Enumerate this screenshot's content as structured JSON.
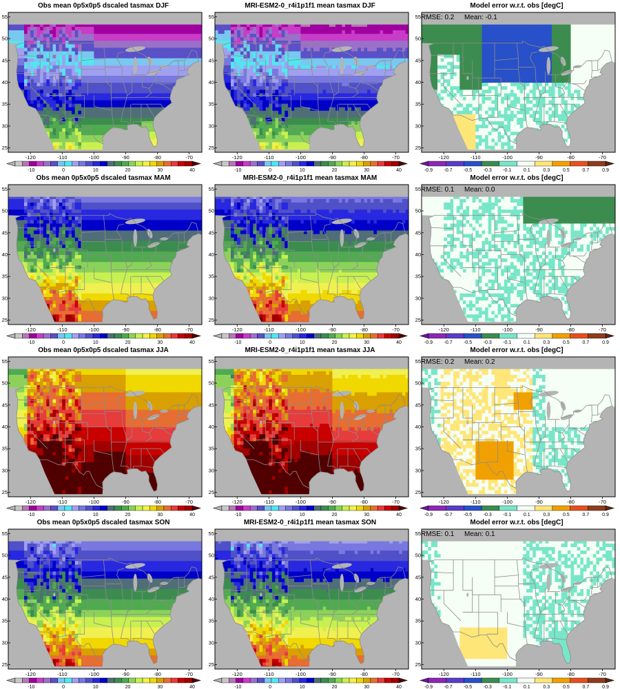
{
  "rows": [
    {
      "season": "DJF",
      "panels": [
        {
          "kind": "obs",
          "title": "Obs mean 0p5x0p5 dscaled tasmax DJF"
        },
        {
          "kind": "model",
          "title": "MRI-ESM2-0_r4i1p1f1 mean tasmax DJF"
        },
        {
          "kind": "error",
          "title": "Model error w.r.t. obs [degC]",
          "rmse_label": "RMSE: 0.2",
          "mean_label": "Mean: -0.1"
        }
      ]
    },
    {
      "season": "MAM",
      "panels": [
        {
          "kind": "obs",
          "title": "Obs mean 0p5x0p5 dscaled tasmax MAM"
        },
        {
          "kind": "model",
          "title": "MRI-ESM2-0_r4i1p1f1 mean tasmax MAM"
        },
        {
          "kind": "error",
          "title": "Model error w.r.t. obs [degC]",
          "rmse_label": "RMSE: 0.1",
          "mean_label": "Mean: 0.0"
        }
      ]
    },
    {
      "season": "JJA",
      "panels": [
        {
          "kind": "obs",
          "title": "Obs mean 0p5x0p5 dscaled tasmax JJA"
        },
        {
          "kind": "model",
          "title": "MRI-ESM2-0_r4i1p1f1 mean tasmax JJA"
        },
        {
          "kind": "error",
          "title": "Model error w.r.t. obs [degC]",
          "rmse_label": "RMSE: 0.2",
          "mean_label": "Mean: 0.2"
        }
      ]
    },
    {
      "season": "SON",
      "panels": [
        {
          "kind": "obs",
          "title": "Obs mean 0p5x0p5 dscaled tasmax SON"
        },
        {
          "kind": "model",
          "title": "MRI-ESM2-0_r4i1p1f1 mean tasmax SON"
        },
        {
          "kind": "error",
          "title": "Model error w.r.t. obs [degC]",
          "rmse_label": "RMSE: 0.1",
          "mean_label": "Mean: 0.1"
        }
      ]
    }
  ],
  "map_axes": {
    "lon_ticks": [
      "-120",
      "-110",
      "-100",
      "-90",
      "-80",
      "-70"
    ],
    "lat_ticks": [
      "25",
      "30",
      "35",
      "40",
      "45",
      "50",
      "55"
    ],
    "lon_range": [
      -127,
      -66
    ],
    "lat_range": [
      24,
      56
    ]
  },
  "colorbars": {
    "temperature": {
      "labels": [
        "-10",
        "0",
        "10",
        "20",
        "30",
        "40"
      ],
      "label_values": [
        -10,
        0,
        10,
        20,
        30,
        40
      ],
      "range": [
        -15,
        40
      ],
      "colors": [
        "#c8c8c8",
        "#b478b4",
        "#a000a0",
        "#c83cc8",
        "#9a70c8",
        "#5a50c8",
        "#78c8f0",
        "#50e8f0",
        "#a0a0f0",
        "#7878e0",
        "#5050c8",
        "#2828e0",
        "#0000c8",
        "#506e78",
        "#3c8c50",
        "#50aa50",
        "#8cd25a",
        "#c8f050",
        "#f0f050",
        "#f0d800",
        "#d8a000",
        "#e66e32",
        "#e63c3c",
        "#c80000",
        "#a00000"
      ],
      "under_color": "#b4b4b4",
      "over_color": "#500000"
    },
    "error": {
      "labels": [
        "-0.9",
        "-0.7",
        "-0.5",
        "-0.3",
        "-0.1",
        "0.1",
        "0.3",
        "0.5",
        "0.7",
        "0.9"
      ],
      "label_values": [
        -0.9,
        -0.7,
        -0.5,
        -0.3,
        -0.1,
        0.1,
        0.3,
        0.5,
        0.7,
        0.9
      ],
      "range": [
        -0.9,
        0.9
      ],
      "colors": [
        "#8c28b4",
        "#5a3cc8",
        "#2850c8",
        "#3c8c50",
        "#78e6c8",
        "#f5fff5",
        "#ffe678",
        "#f0a000",
        "#e6501e",
        "#8c3c1e"
      ],
      "under_color": "#6e14a0",
      "over_color": "#5a2814"
    }
  },
  "colors": {
    "ocean": "#b4b4b4",
    "boundary": "#8c8c8c",
    "frame": "#000000"
  }
}
